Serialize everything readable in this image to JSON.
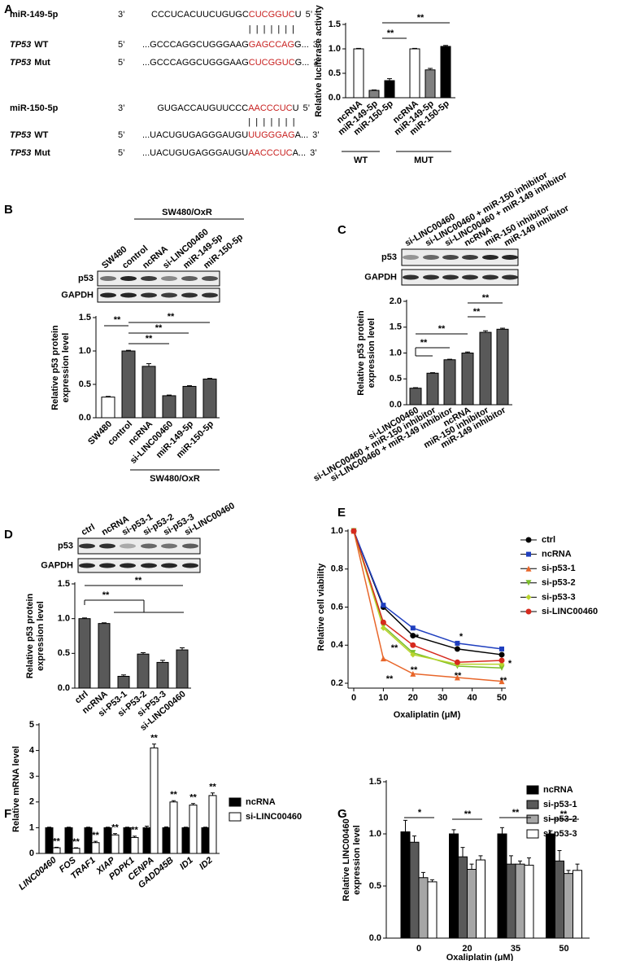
{
  "panel_labels": [
    "A",
    "B",
    "C",
    "D",
    "E",
    "F",
    "G"
  ],
  "sequences": [
    {
      "mirna": {
        "label": "miR-149-5p",
        "left": "3’",
        "seq": [
          "CCCUCACUUCUGUGC",
          "CUCGGUC",
          "U"
        ],
        "right": "5’"
      },
      "pairing": "|||||||",
      "targets": [
        {
          "gene": "TP53",
          "label": "WT",
          "left": "5’",
          "seq": [
            "...GCCCAGGCUGGGAAG",
            "GAGCCAG",
            "G..."
          ],
          "right": "3’"
        },
        {
          "gene": "TP53",
          "label": "Mut",
          "left": "5’",
          "seq": [
            "...GCCCAGGCUGGGAAG",
            "CUCGGUC",
            "G..."
          ],
          "right": "3’"
        }
      ]
    },
    {
      "mirna": {
        "label": "miR-150-5p",
        "left": "3’",
        "seq": [
          "GUGACCAUGUUCCC",
          "AACCCUC",
          "U"
        ],
        "right": "5’"
      },
      "pairing": "|||||||",
      "targets": [
        {
          "gene": "TP53",
          "label": "WT",
          "left": "5’",
          "seq": [
            "...UACUGUGAGGGAUGU",
            "UUGGGAG",
            "A..."
          ],
          "right": "3’"
        },
        {
          "gene": "TP53",
          "label": "Mut",
          "left": "5’",
          "seq": [
            "...UACUGUGAGGGAUGU",
            "AACCCUC",
            "A..."
          ],
          "right": "3’"
        }
      ]
    }
  ],
  "blots": [
    {
      "header": "SW480/OxR",
      "lanes": [
        "SW480",
        "control",
        "ncRNA",
        "si-LINC00460",
        "miR-149-5p",
        "miR-150-5p"
      ],
      "rows": [
        "p53",
        "GAPDH"
      ]
    },
    {
      "lanes": [
        "si-LINC00460",
        "si-LINC00460 + miR-150 inhibitor",
        "si-LINC00460 + miR-149 inhibitor",
        "ncRNA",
        "miR-150 inhibitor",
        "miR-149 inhibitor"
      ],
      "rows": [
        "p53",
        "GAPDH"
      ]
    },
    {
      "lanes": [
        "ctrl",
        "ncRNA",
        "si-p53-1",
        "si-p53-2",
        "si-p53-3",
        "si-LINC00460"
      ],
      "rows": [
        "p53",
        "GAPDH"
      ]
    }
  ],
  "chart_data": [
    {
      "type": "bar",
      "ylabel": "Relative luciferase activity",
      "categories": [
        "ncRNA",
        "miR-149-5p",
        "miR-150-5p",
        "ncRNA",
        "miR-149-5p",
        "miR-150-5p"
      ],
      "values": [
        1.0,
        0.15,
        0.35,
        1.0,
        0.57,
        1.05
      ],
      "errors": [
        0.01,
        0.01,
        0.04,
        0.01,
        0.03,
        0.02
      ],
      "colors": [
        "#ffffff",
        "#808080",
        "#000000",
        "#ffffff",
        "#808080",
        "#000000"
      ],
      "ylim": [
        0,
        1.5
      ],
      "yticks": [
        {
          "value": 0,
          "label": "0.0"
        },
        0.5,
        {
          "value": 1,
          "label": "1.0"
        },
        1.5
      ],
      "group_labels": [
        "WT",
        "MUT"
      ],
      "annotations": [
        "**",
        "**"
      ]
    },
    {
      "type": "bar",
      "ylabel": [
        "Relative p53 protein",
        "expression level"
      ],
      "categories": [
        "SW480",
        "control",
        "ncRNA",
        "si-LINC00460",
        "miR-149-5p",
        "miR-150-5p"
      ],
      "values": [
        0.31,
        1.0,
        0.77,
        0.33,
        0.47,
        0.58
      ],
      "errors": [
        0.01,
        0.01,
        0.04,
        0.01,
        0.01,
        0.01
      ],
      "colors": [
        "#ffffff",
        "#595959",
        "#595959",
        "#595959",
        "#595959",
        "#595959"
      ],
      "ylim": [
        0,
        1.5
      ],
      "yticks": [
        {
          "value": 0,
          "label": "0.0"
        },
        0.5,
        {
          "value": 1,
          "label": "1.0"
        },
        1.5
      ],
      "group_labels": [
        "SW480/OxR"
      ],
      "annotations": [
        "**",
        "**",
        "**",
        "**"
      ]
    },
    {
      "type": "bar",
      "ylabel": [
        "Relative p53 protein",
        "expression level"
      ],
      "categories": [
        "si-LINC00460",
        "si-LINC00460 + miR-150 inhibitor",
        "si-LINC00460 + miR-149 inhibitor",
        "ncRNA",
        "miR-150 inhibitor",
        "miR-149 inhibitor"
      ],
      "values": [
        0.32,
        0.61,
        0.87,
        1.0,
        1.4,
        1.46
      ],
      "errors": [
        0.01,
        0.01,
        0.01,
        0.02,
        0.03,
        0.02
      ],
      "colors": [
        "#595959",
        "#595959",
        "#595959",
        "#595959",
        "#595959",
        "#595959"
      ],
      "ylim": [
        0,
        2
      ],
      "yticks": [
        {
          "value": 0,
          "label": "0.0"
        },
        0.5,
        {
          "value": 1,
          "label": "1.0"
        },
        1.5,
        {
          "value": 2,
          "label": "2.0"
        }
      ],
      "annotations": [
        "**",
        "**",
        "**",
        "**"
      ]
    },
    {
      "type": "bar",
      "ylabel": [
        "Relative p53 protein",
        "expression level"
      ],
      "categories": [
        "ctrl",
        "ncRNA",
        "si-P53-1",
        "si-P53-2",
        "si-P53-3",
        "si-LINC00460"
      ],
      "values": [
        1.0,
        0.93,
        0.17,
        0.49,
        0.37,
        0.55
      ],
      "errors": [
        0.01,
        0.01,
        0.02,
        0.02,
        0.03,
        0.03
      ],
      "colors": [
        "#595959",
        "#595959",
        "#595959",
        "#595959",
        "#595959",
        "#595959"
      ],
      "ylim": [
        0,
        1.5
      ],
      "yticks": [
        {
          "value": 0,
          "label": "0.0"
        },
        0.5,
        {
          "value": 1,
          "label": "1.0"
        },
        1.5
      ],
      "annotations": [
        "**",
        "**"
      ]
    },
    {
      "type": "line",
      "ylabel": "Relative cell viability",
      "xlabel": "Oxaliplatin (μM)",
      "x": [
        0,
        10,
        20,
        35,
        50
      ],
      "series": [
        {
          "name": "ctrl",
          "color": "#000000",
          "marker": "circle",
          "values": [
            1.0,
            0.6,
            0.45,
            0.38,
            0.35
          ]
        },
        {
          "name": "ncRNA",
          "color": "#1f3fbf",
          "marker": "square",
          "values": [
            1.0,
            0.61,
            0.49,
            0.41,
            0.38
          ]
        },
        {
          "name": "si-p53-1",
          "color": "#e8662a",
          "marker": "triangle",
          "values": [
            1.0,
            0.33,
            0.25,
            0.23,
            0.21
          ]
        },
        {
          "name": "si-p53-2",
          "color": "#7cbf2a",
          "marker": "triangle-down",
          "values": [
            1.0,
            0.5,
            0.36,
            0.29,
            0.28
          ]
        },
        {
          "name": "si-p53-3",
          "color": "#b9d42c",
          "marker": "diamond",
          "values": [
            1.0,
            0.49,
            0.35,
            0.3,
            0.3
          ]
        },
        {
          "name": "si-LINC00460",
          "color": "#d62a1e",
          "marker": "circle",
          "values": [
            1.0,
            0.52,
            0.4,
            0.31,
            0.32
          ]
        }
      ],
      "xlim": [
        0,
        50
      ],
      "xticks": [
        0,
        10,
        20,
        30,
        40,
        50
      ],
      "ylim": [
        0.2,
        1.0
      ],
      "yticks": [
        0.2,
        0.4,
        0.6,
        0.8,
        {
          "value": 1,
          "label": "1.0"
        }
      ],
      "legend": "right",
      "annotations": [
        "**",
        "**",
        "**",
        "*",
        "*",
        "**",
        "*",
        "**"
      ]
    },
    {
      "type": "bar",
      "ylabel": "Relative mRNA level",
      "categories": [
        "LINC00460",
        "FOS",
        "TRAF1",
        "XIAP",
        "PDPK1",
        "CENPA",
        "GADD45B",
        "ID1",
        "ID2"
      ],
      "series": [
        {
          "name": "ncRNA",
          "color": "#000000",
          "values": [
            1,
            1,
            1,
            1,
            1,
            1,
            1,
            1,
            1
          ],
          "errors": [
            0.02,
            0.02,
            0.02,
            0.02,
            0.02,
            0.06,
            0.03,
            0.02,
            0.02
          ]
        },
        {
          "name": "si-LINC00460",
          "color": "#ffffff",
          "values": [
            0.22,
            0.2,
            0.42,
            0.72,
            0.62,
            4.1,
            2.0,
            1.88,
            2.25
          ],
          "errors": [
            0.02,
            0.02,
            0.05,
            0.05,
            0.05,
            0.15,
            0.05,
            0.06,
            0.1
          ]
        }
      ],
      "ylim": [
        0,
        5
      ],
      "yticks": [
        0,
        1,
        2,
        3,
        4,
        5
      ],
      "legend": "right",
      "annotations": [
        "**",
        "**",
        "**",
        "**",
        "**",
        "**",
        "**",
        "**",
        "**"
      ]
    },
    {
      "type": "bar",
      "ylabel": [
        "Relative LINC00460",
        "expression level"
      ],
      "xlabel": "Oxaliplatin (μM)",
      "categories": [
        "0",
        "20",
        "35",
        "50"
      ],
      "series": [
        {
          "name": "ncRNA",
          "color": "#000000",
          "values": [
            1.02,
            1.0,
            1.0,
            1.0
          ],
          "errors": [
            0.11,
            0.04,
            0.06,
            0.03
          ]
        },
        {
          "name": "si-p53-1",
          "color": "#595959",
          "values": [
            0.92,
            0.78,
            0.71,
            0.74
          ],
          "errors": [
            0.06,
            0.09,
            0.08,
            0.1
          ]
        },
        {
          "name": "si-p53-2",
          "color": "#a6a6a6",
          "values": [
            0.58,
            0.66,
            0.71,
            0.62
          ],
          "errors": [
            0.05,
            0.05,
            0.03,
            0.03
          ]
        },
        {
          "name": "si-p53-3",
          "color": "#ffffff",
          "values": [
            0.54,
            0.75,
            0.7,
            0.65
          ],
          "errors": [
            0.02,
            0.04,
            0.07,
            0.06
          ]
        }
      ],
      "ylim": [
        0,
        1.5
      ],
      "yticks": [
        {
          "value": 0,
          "label": "0.0"
        },
        0.5,
        {
          "value": 1,
          "label": "1.0"
        },
        1.5
      ],
      "legend": "right",
      "annotations": [
        "*",
        "**",
        "**",
        "**"
      ]
    }
  ]
}
